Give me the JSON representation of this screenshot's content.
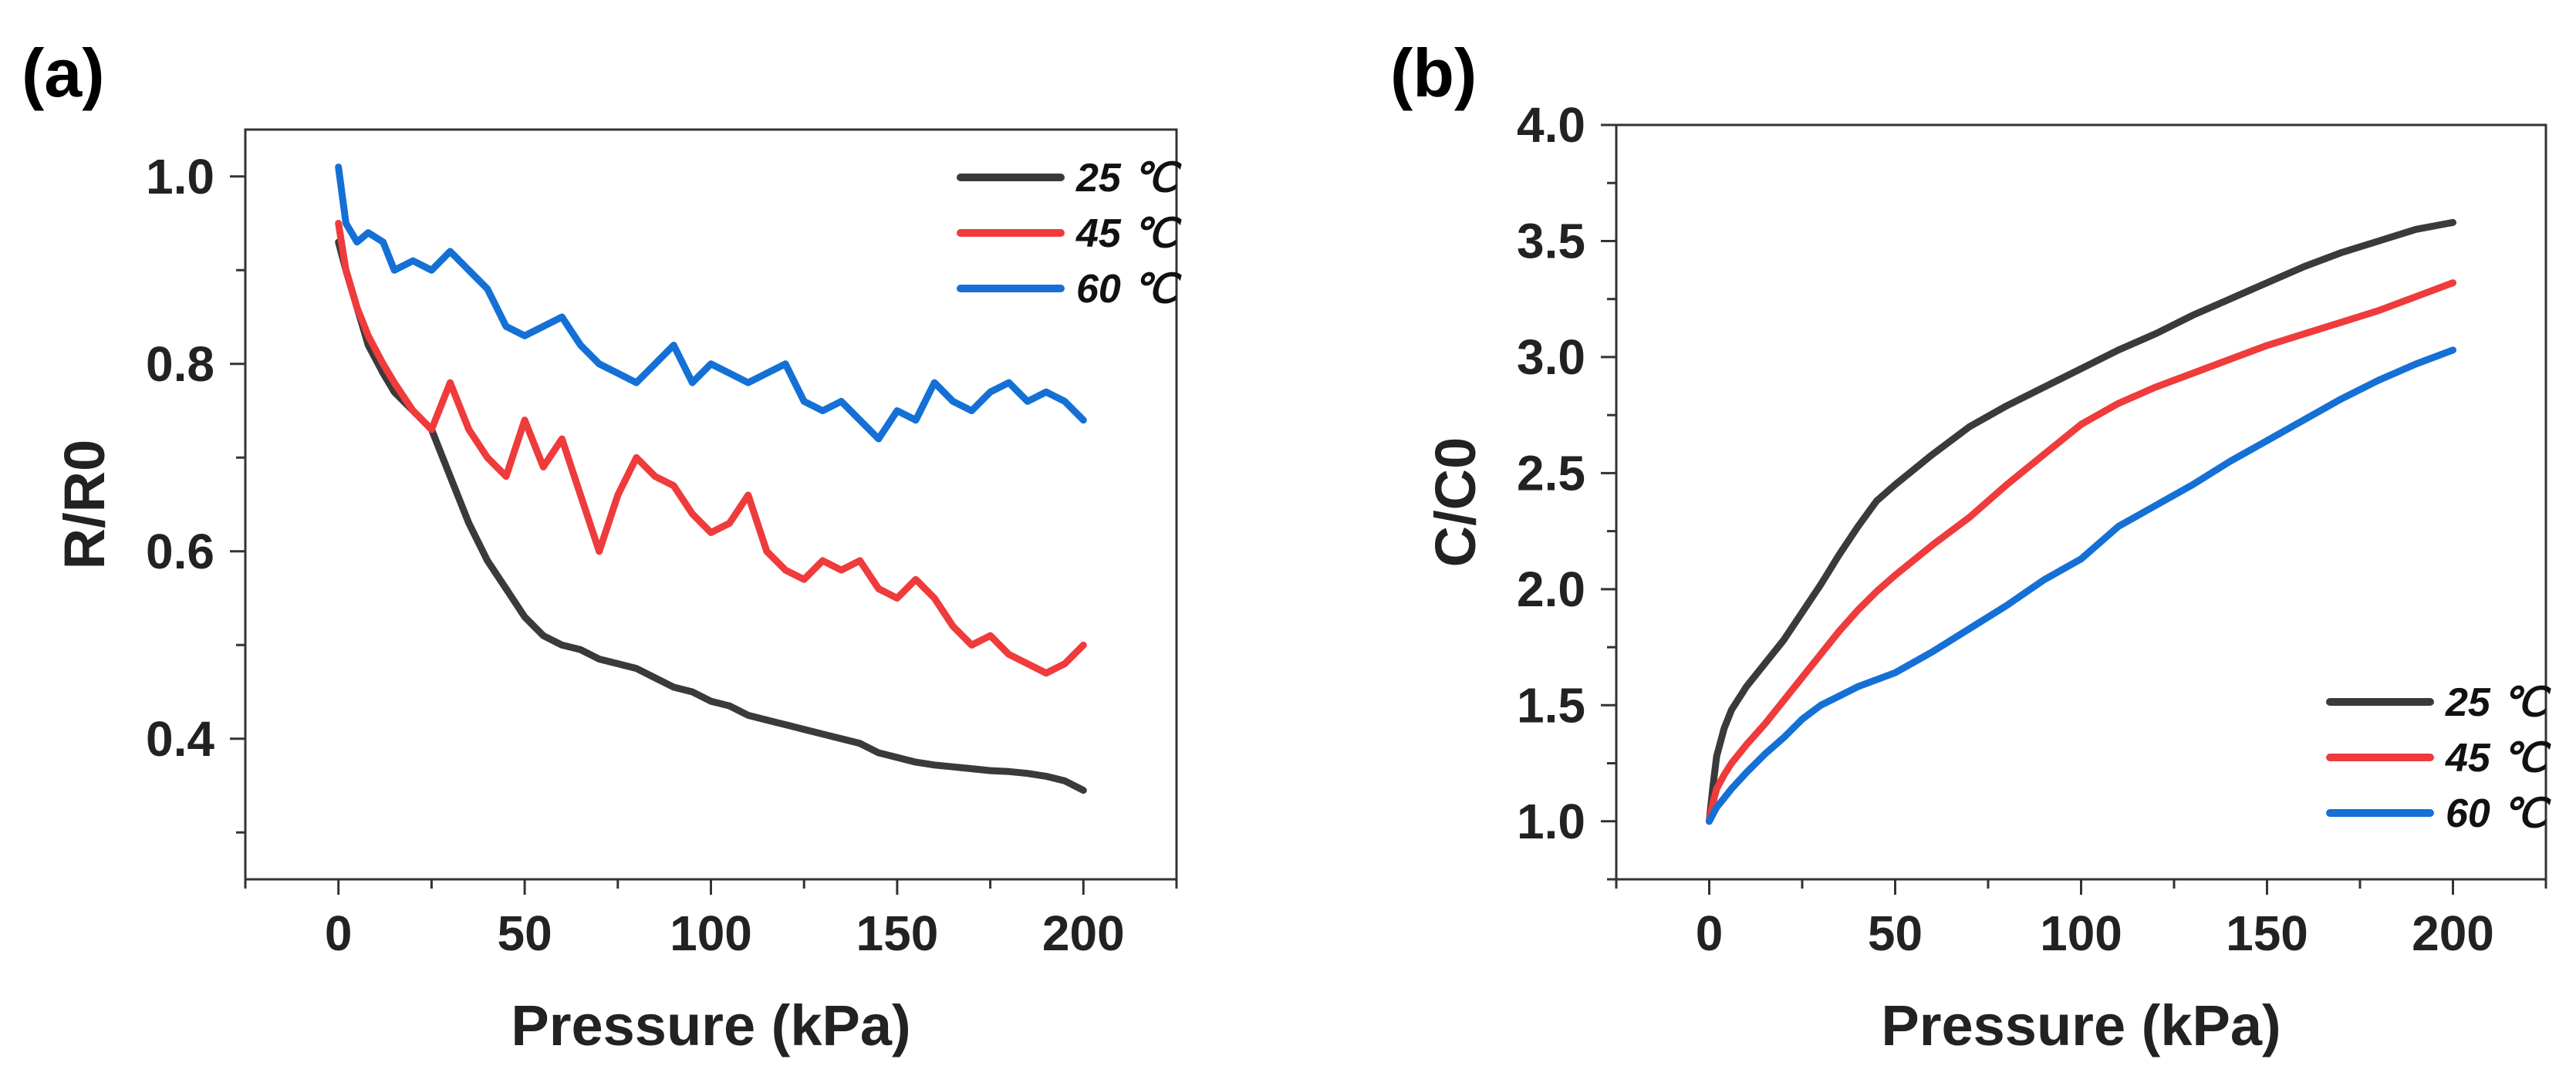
{
  "chart_data": [
    {
      "type": "line",
      "panel_label": "(a)",
      "xlabel": "Pressure (kPa)",
      "ylabel": "R/R0",
      "xlim": [
        -25,
        225
      ],
      "ylim": [
        0.25,
        1.05
      ],
      "xticks": [
        0,
        50,
        100,
        150,
        200
      ],
      "xtick_labels": [
        "0",
        "50",
        "100",
        "150",
        "200"
      ],
      "yticks": [
        0.4,
        0.6,
        0.8,
        1.0
      ],
      "ytick_labels": [
        "0.4",
        "0.6",
        "0.8",
        "1.0"
      ],
      "legend_position": "top-right",
      "grid": false,
      "series": [
        {
          "name": "25 ℃",
          "color": "#3a3a3a",
          "x": [
            0,
            2,
            5,
            8,
            12,
            15,
            20,
            25,
            30,
            35,
            40,
            45,
            50,
            55,
            60,
            65,
            70,
            75,
            80,
            85,
            90,
            95,
            100,
            105,
            110,
            115,
            120,
            125,
            130,
            135,
            140,
            145,
            150,
            155,
            160,
            165,
            170,
            175,
            180,
            185,
            190,
            195,
            200
          ],
          "y": [
            0.93,
            0.9,
            0.86,
            0.82,
            0.79,
            0.77,
            0.75,
            0.73,
            0.68,
            0.63,
            0.59,
            0.56,
            0.53,
            0.51,
            0.5,
            0.495,
            0.485,
            0.48,
            0.475,
            0.465,
            0.455,
            0.45,
            0.44,
            0.435,
            0.425,
            0.42,
            0.415,
            0.41,
            0.405,
            0.4,
            0.395,
            0.385,
            0.38,
            0.375,
            0.372,
            0.37,
            0.368,
            0.366,
            0.365,
            0.363,
            0.36,
            0.355,
            0.345
          ]
        },
        {
          "name": "45 ℃",
          "color": "#ef3b3b",
          "x": [
            0,
            2,
            5,
            8,
            12,
            15,
            20,
            25,
            30,
            35,
            40,
            45,
            50,
            55,
            60,
            65,
            70,
            75,
            80,
            85,
            90,
            95,
            100,
            105,
            110,
            115,
            120,
            125,
            130,
            135,
            140,
            145,
            150,
            155,
            160,
            165,
            170,
            175,
            180,
            185,
            190,
            195,
            200
          ],
          "y": [
            0.95,
            0.9,
            0.86,
            0.83,
            0.8,
            0.78,
            0.75,
            0.73,
            0.78,
            0.73,
            0.7,
            0.68,
            0.74,
            0.69,
            0.72,
            0.66,
            0.6,
            0.66,
            0.7,
            0.68,
            0.67,
            0.64,
            0.62,
            0.63,
            0.66,
            0.6,
            0.58,
            0.57,
            0.59,
            0.58,
            0.59,
            0.56,
            0.55,
            0.57,
            0.55,
            0.52,
            0.5,
            0.51,
            0.49,
            0.48,
            0.47,
            0.48,
            0.5
          ]
        },
        {
          "name": "60 ℃",
          "color": "#1570d6",
          "x": [
            0,
            2,
            5,
            8,
            12,
            15,
            20,
            25,
            30,
            35,
            40,
            45,
            50,
            55,
            60,
            65,
            70,
            75,
            80,
            85,
            90,
            95,
            100,
            105,
            110,
            115,
            120,
            125,
            130,
            135,
            140,
            145,
            150,
            155,
            160,
            165,
            170,
            175,
            180,
            185,
            190,
            195,
            200
          ],
          "y": [
            1.01,
            0.95,
            0.93,
            0.94,
            0.93,
            0.9,
            0.91,
            0.9,
            0.92,
            0.9,
            0.88,
            0.84,
            0.83,
            0.84,
            0.85,
            0.82,
            0.8,
            0.79,
            0.78,
            0.8,
            0.82,
            0.78,
            0.8,
            0.79,
            0.78,
            0.79,
            0.8,
            0.76,
            0.75,
            0.76,
            0.74,
            0.72,
            0.75,
            0.74,
            0.78,
            0.76,
            0.75,
            0.77,
            0.78,
            0.76,
            0.77,
            0.76,
            0.74
          ]
        }
      ]
    },
    {
      "type": "line",
      "panel_label": "(b)",
      "xlabel": "Pressure (kPa)",
      "ylabel": "C/C0",
      "xlim": [
        -25,
        225
      ],
      "ylim": [
        0.75,
        4.0
      ],
      "xticks": [
        0,
        50,
        100,
        150,
        200
      ],
      "xtick_labels": [
        "0",
        "50",
        "100",
        "150",
        "200"
      ],
      "yticks": [
        1.0,
        1.5,
        2.0,
        2.5,
        3.0,
        3.5,
        4.0
      ],
      "ytick_labels": [
        "1.0",
        "1.5",
        "2.0",
        "2.5",
        "3.0",
        "3.5",
        "4.0"
      ],
      "legend_position": "bottom-right",
      "grid": false,
      "series": [
        {
          "name": "25 ℃",
          "color": "#3a3a3a",
          "x": [
            0,
            1,
            2,
            4,
            6,
            10,
            15,
            20,
            25,
            30,
            35,
            40,
            45,
            50,
            60,
            70,
            80,
            90,
            100,
            110,
            120,
            130,
            140,
            150,
            160,
            170,
            180,
            190,
            200
          ],
          "y": [
            1.0,
            1.15,
            1.28,
            1.4,
            1.48,
            1.58,
            1.68,
            1.78,
            1.9,
            2.02,
            2.15,
            2.27,
            2.38,
            2.45,
            2.58,
            2.7,
            2.79,
            2.87,
            2.95,
            3.03,
            3.1,
            3.18,
            3.25,
            3.32,
            3.39,
            3.45,
            3.5,
            3.55,
            3.58
          ]
        },
        {
          "name": "45 ℃",
          "color": "#ef3b3b",
          "x": [
            0,
            1,
            2,
            4,
            6,
            10,
            15,
            20,
            25,
            30,
            35,
            40,
            45,
            50,
            60,
            70,
            80,
            90,
            100,
            110,
            120,
            130,
            140,
            150,
            160,
            170,
            180,
            190,
            200
          ],
          "y": [
            1.0,
            1.08,
            1.14,
            1.2,
            1.25,
            1.33,
            1.42,
            1.52,
            1.62,
            1.72,
            1.82,
            1.91,
            1.99,
            2.06,
            2.19,
            2.31,
            2.45,
            2.58,
            2.71,
            2.8,
            2.87,
            2.93,
            2.99,
            3.05,
            3.1,
            3.15,
            3.2,
            3.26,
            3.32
          ]
        },
        {
          "name": "60 ℃",
          "color": "#1570d6",
          "x": [
            0,
            1,
            2,
            4,
            6,
            10,
            15,
            20,
            25,
            30,
            35,
            40,
            45,
            50,
            60,
            70,
            80,
            90,
            100,
            110,
            120,
            130,
            140,
            150,
            160,
            170,
            180,
            190,
            200
          ],
          "y": [
            1.0,
            1.03,
            1.06,
            1.1,
            1.14,
            1.21,
            1.29,
            1.36,
            1.44,
            1.5,
            1.54,
            1.58,
            1.61,
            1.64,
            1.73,
            1.83,
            1.93,
            2.04,
            2.13,
            2.27,
            2.36,
            2.45,
            2.55,
            2.64,
            2.73,
            2.82,
            2.9,
            2.97,
            3.03
          ]
        }
      ]
    }
  ]
}
